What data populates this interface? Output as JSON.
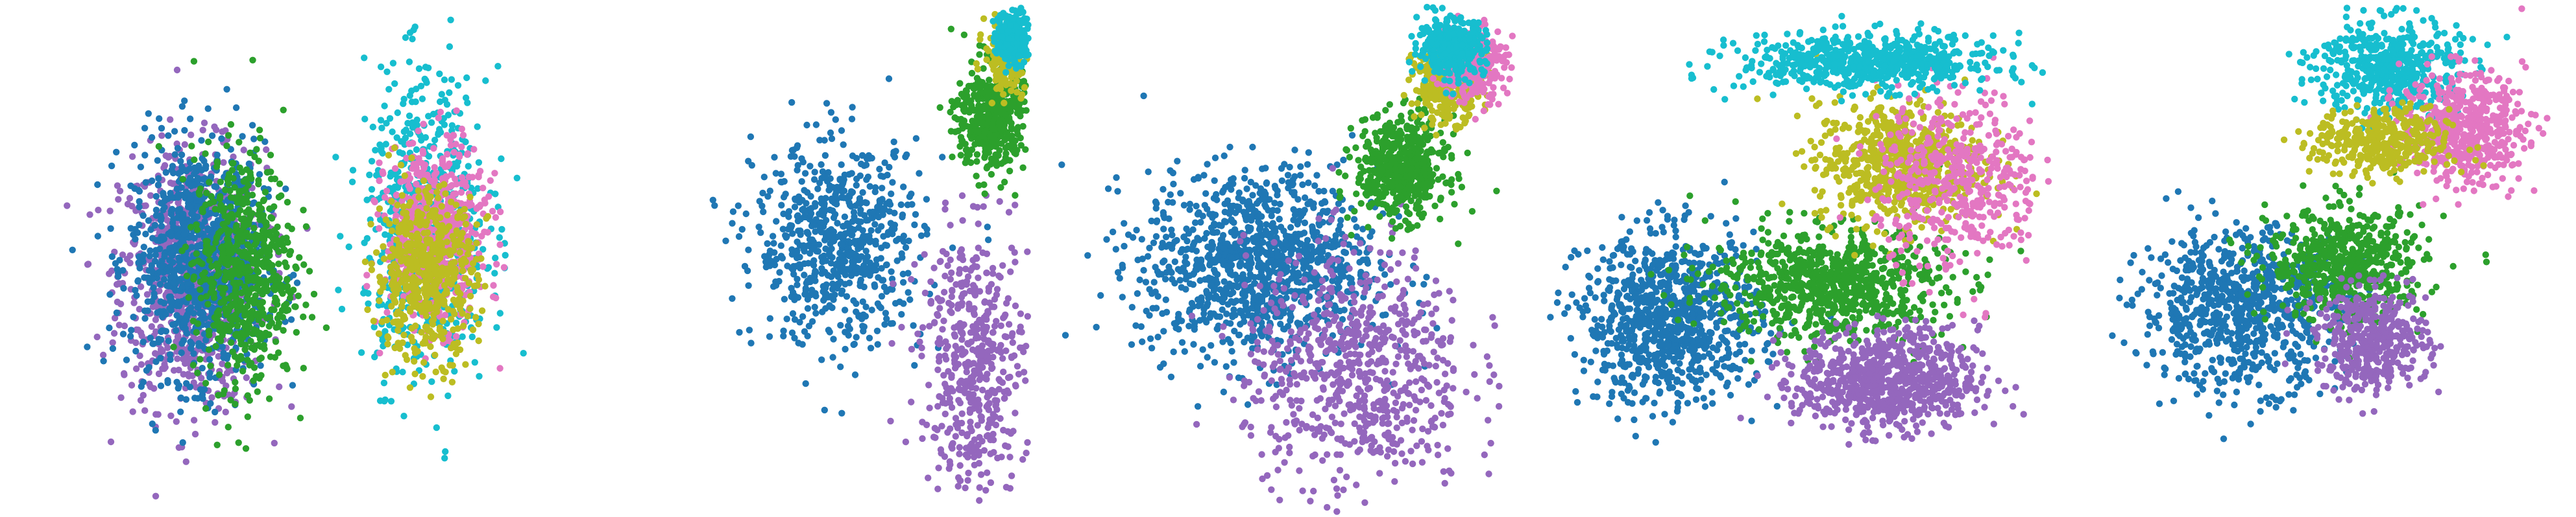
{
  "colors": {
    "blue": "#1f77b4",
    "green": "#2ca02c",
    "purple": "#9467bd",
    "pink": "#e377c2",
    "olive": "#bcbd22",
    "cyan": "#17becf"
  },
  "chart_data": [
    {
      "type": "scatter",
      "panel": 1,
      "axes": "hidden",
      "grid": false,
      "legend": "none",
      "xlim": [
        0,
        10
      ],
      "ylim": [
        0,
        10
      ],
      "clusters": [
        {
          "color": "purple",
          "cx": 3.3,
          "cy": 4.6,
          "sx": 1.3,
          "sy": 2.3,
          "n": 900
        },
        {
          "color": "blue",
          "cx": 3.4,
          "cy": 5.0,
          "sx": 1.2,
          "sy": 2.1,
          "n": 900
        },
        {
          "color": "green",
          "cx": 4.3,
          "cy": 4.8,
          "sx": 0.9,
          "sy": 2.1,
          "n": 650
        },
        {
          "color": "cyan",
          "cx": 7.9,
          "cy": 5.7,
          "sx": 1.1,
          "sy": 2.7,
          "n": 650
        },
        {
          "color": "pink",
          "cx": 8.1,
          "cy": 5.5,
          "sx": 0.9,
          "sy": 1.6,
          "n": 600
        },
        {
          "color": "olive",
          "cx": 7.9,
          "cy": 4.7,
          "sx": 0.9,
          "sy": 1.5,
          "n": 550
        }
      ]
    },
    {
      "type": "scatter",
      "panel": 2,
      "axes": "hidden",
      "grid": false,
      "legend": "none",
      "xlim": [
        0,
        10
      ],
      "ylim": [
        0,
        10
      ],
      "clusters": [
        {
          "color": "blue",
          "cx": 5.0,
          "cy": 5.3,
          "sx": 2.0,
          "sy": 1.8,
          "n": 700
        },
        {
          "color": "purple",
          "cx": 8.6,
          "cy": 3.0,
          "sx": 1.3,
          "sy": 2.3,
          "n": 500
        },
        {
          "color": "green",
          "cx": 9.0,
          "cy": 7.8,
          "sx": 0.8,
          "sy": 1.0,
          "n": 450
        },
        {
          "color": "olive",
          "cx": 9.4,
          "cy": 9.0,
          "sx": 0.5,
          "sy": 0.6,
          "n": 200
        },
        {
          "color": "cyan",
          "cx": 9.6,
          "cy": 9.4,
          "sx": 0.4,
          "sy": 0.5,
          "n": 220
        }
      ]
    },
    {
      "type": "scatter",
      "panel": 3,
      "axes": "hidden",
      "grid": false,
      "legend": "none",
      "xlim": [
        0,
        10
      ],
      "ylim": [
        0,
        10
      ],
      "clusters": [
        {
          "color": "blue",
          "cx": 4.5,
          "cy": 4.9,
          "sx": 2.1,
          "sy": 1.7,
          "n": 1100
        },
        {
          "color": "purple",
          "cx": 6.4,
          "cy": 2.8,
          "sx": 2.0,
          "sy": 2.2,
          "n": 700
        },
        {
          "color": "green",
          "cx": 7.3,
          "cy": 6.8,
          "sx": 0.8,
          "sy": 0.9,
          "n": 550
        },
        {
          "color": "olive",
          "cx": 8.2,
          "cy": 8.5,
          "sx": 0.6,
          "sy": 0.7,
          "n": 350
        },
        {
          "color": "pink",
          "cx": 8.7,
          "cy": 8.9,
          "sx": 0.6,
          "sy": 0.7,
          "n": 300
        },
        {
          "color": "cyan",
          "cx": 8.3,
          "cy": 9.2,
          "sx": 0.6,
          "sy": 0.5,
          "n": 350
        }
      ]
    },
    {
      "type": "scatter",
      "panel": 4,
      "axes": "hidden",
      "grid": false,
      "legend": "none",
      "xlim": [
        0,
        10
      ],
      "ylim": [
        0,
        10
      ],
      "clusters": [
        {
          "color": "blue",
          "cx": 2.5,
          "cy": 3.8,
          "sx": 1.6,
          "sy": 1.5,
          "n": 900
        },
        {
          "color": "green",
          "cx": 5.6,
          "cy": 4.5,
          "sx": 2.1,
          "sy": 1.0,
          "n": 800
        },
        {
          "color": "purple",
          "cx": 6.8,
          "cy": 2.6,
          "sx": 1.6,
          "sy": 0.9,
          "n": 800
        },
        {
          "color": "olive",
          "cx": 7.0,
          "cy": 6.9,
          "sx": 1.5,
          "sy": 1.1,
          "n": 700
        },
        {
          "color": "pink",
          "cx": 8.2,
          "cy": 6.6,
          "sx": 1.5,
          "sy": 1.6,
          "n": 450
        },
        {
          "color": "cyan",
          "cx": 6.4,
          "cy": 8.9,
          "sx": 2.3,
          "sy": 0.5,
          "n": 650
        }
      ]
    },
    {
      "type": "scatter",
      "panel": 5,
      "axes": "hidden",
      "grid": false,
      "legend": "none",
      "xlim": [
        0,
        10
      ],
      "ylim": [
        0,
        10
      ],
      "clusters": [
        {
          "color": "blue",
          "cx": 3.5,
          "cy": 4.0,
          "sx": 1.8,
          "sy": 1.4,
          "n": 800
        },
        {
          "color": "green",
          "cx": 5.6,
          "cy": 4.9,
          "sx": 1.4,
          "sy": 1.0,
          "n": 600
        },
        {
          "color": "purple",
          "cx": 6.1,
          "cy": 3.4,
          "sx": 1.0,
          "sy": 0.9,
          "n": 450
        },
        {
          "color": "cyan",
          "cx": 6.4,
          "cy": 8.8,
          "sx": 1.3,
          "sy": 0.9,
          "n": 500
        },
        {
          "color": "pink",
          "cx": 7.9,
          "cy": 7.6,
          "sx": 1.1,
          "sy": 1.0,
          "n": 550
        },
        {
          "color": "olive",
          "cx": 6.3,
          "cy": 7.3,
          "sx": 1.2,
          "sy": 0.6,
          "n": 400
        }
      ]
    }
  ]
}
